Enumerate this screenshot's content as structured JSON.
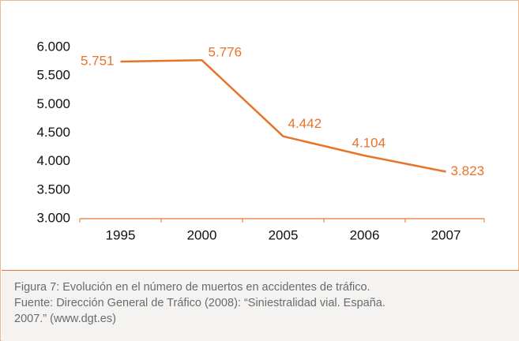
{
  "chart_data": {
    "type": "line",
    "categories": [
      "1995",
      "2000",
      "2005",
      "2006",
      "2007"
    ],
    "series": [
      {
        "color": "#e8732a",
        "values": [
          5751,
          5776,
          4442,
          4104,
          3823
        ],
        "value_labels": [
          "5.751",
          "5.776",
          "4.442",
          "4.104",
          "3.823"
        ]
      }
    ],
    "ylim": [
      3000,
      6000
    ],
    "yticks": [
      {
        "value": 3000,
        "label": "3.000"
      },
      {
        "value": 3500,
        "label": "3.500"
      },
      {
        "value": 4000,
        "label": "4.000"
      },
      {
        "value": 4500,
        "label": "4.500"
      },
      {
        "value": 5000,
        "label": "5.000"
      },
      {
        "value": 5500,
        "label": "5.500"
      },
      {
        "value": 6000,
        "label": "6.000"
      }
    ],
    "grid": false
  },
  "caption": [
    "Figura 7: Evolución en el número de muertos en accidentes de tráfico.",
    "Fuente: Dirección General de Tráfico (2008): “Siniestralidad vial. España.",
    "2007.” (www.dgt.es)"
  ]
}
